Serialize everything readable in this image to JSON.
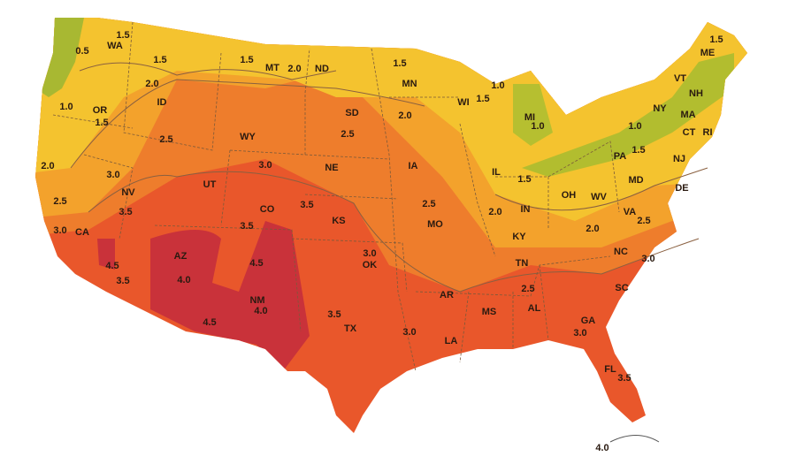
{
  "states": [
    "WA",
    "OR",
    "CA",
    "NV",
    "ID",
    "MT",
    "WY",
    "UT",
    "AZ",
    "CO",
    "NM",
    "ND",
    "SD",
    "NE",
    "KS",
    "OK",
    "TX",
    "MN",
    "IA",
    "MO",
    "AR",
    "LA",
    "WI",
    "IL",
    "MS",
    "MI",
    "IN",
    "OH",
    "KY",
    "TN",
    "AL",
    "GA",
    "FL",
    "SC",
    "NC",
    "VA",
    "WV",
    "MD",
    "DE",
    "PA",
    "NY",
    "NJ",
    "CT",
    "RI",
    "MA",
    "VT",
    "NH",
    "ME"
  ],
  "contour_labels": [
    "0.5",
    "1.5",
    "1.5",
    "1.5",
    "2.0",
    "1.5",
    "1.0",
    "1.5",
    "1.0",
    "2.0",
    "1.5",
    "1.0",
    "1.5",
    "2.0",
    "2.5",
    "3.0",
    "2.0",
    "2.5",
    "3.0",
    "3.5",
    "4.5",
    "3.5",
    "2.5",
    "3.0",
    "3.5",
    "3.5",
    "4.5",
    "4.0",
    "4.0",
    "4.5",
    "3.5",
    "3.0",
    "3.0",
    "2.5",
    "2.0",
    "1.5",
    "1.0",
    "1.5",
    "2.0",
    "2.5",
    "3.0",
    "2.5",
    "3.0",
    "3.5",
    "4.0"
  ]
}
